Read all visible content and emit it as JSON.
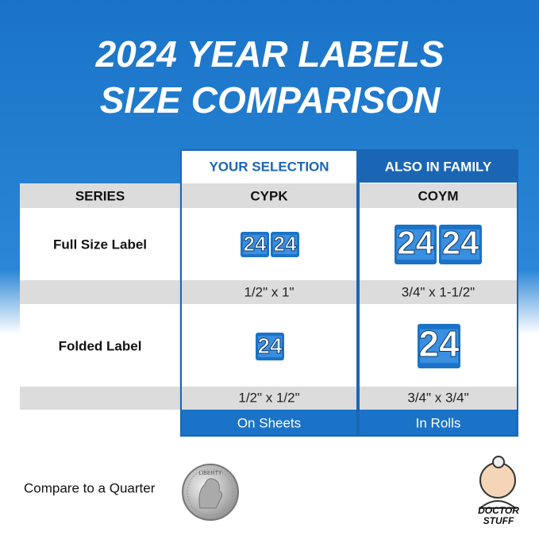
{
  "header": {
    "title": [
      "2024 YEAR LABELS",
      "SIZE COMPARISON"
    ]
  },
  "table": {
    "columns": [
      "YOUR SELECTION",
      "ALSO IN FAMILY"
    ],
    "series": {
      "label": "SERIES",
      "values": [
        "CYPK",
        "COYM"
      ]
    },
    "full_size": {
      "label": "Full Size Label",
      "sizes": [
        "1/2\" x 1\"",
        "3/4\" x 1-1/2\""
      ]
    },
    "folded": {
      "label": "Folded Label",
      "sizes": [
        "1/2\" x 1/2\"",
        "3/4\" x 3/4\""
      ]
    },
    "format": [
      "On Sheets",
      "In Rolls"
    ]
  },
  "labels": {
    "text": "24"
  },
  "quarter": {
    "caption": "Compare to a Quarter",
    "coin_text": "LIBERTY"
  },
  "logo": {
    "lines": [
      "DOCTOR",
      "STUFF"
    ]
  }
}
